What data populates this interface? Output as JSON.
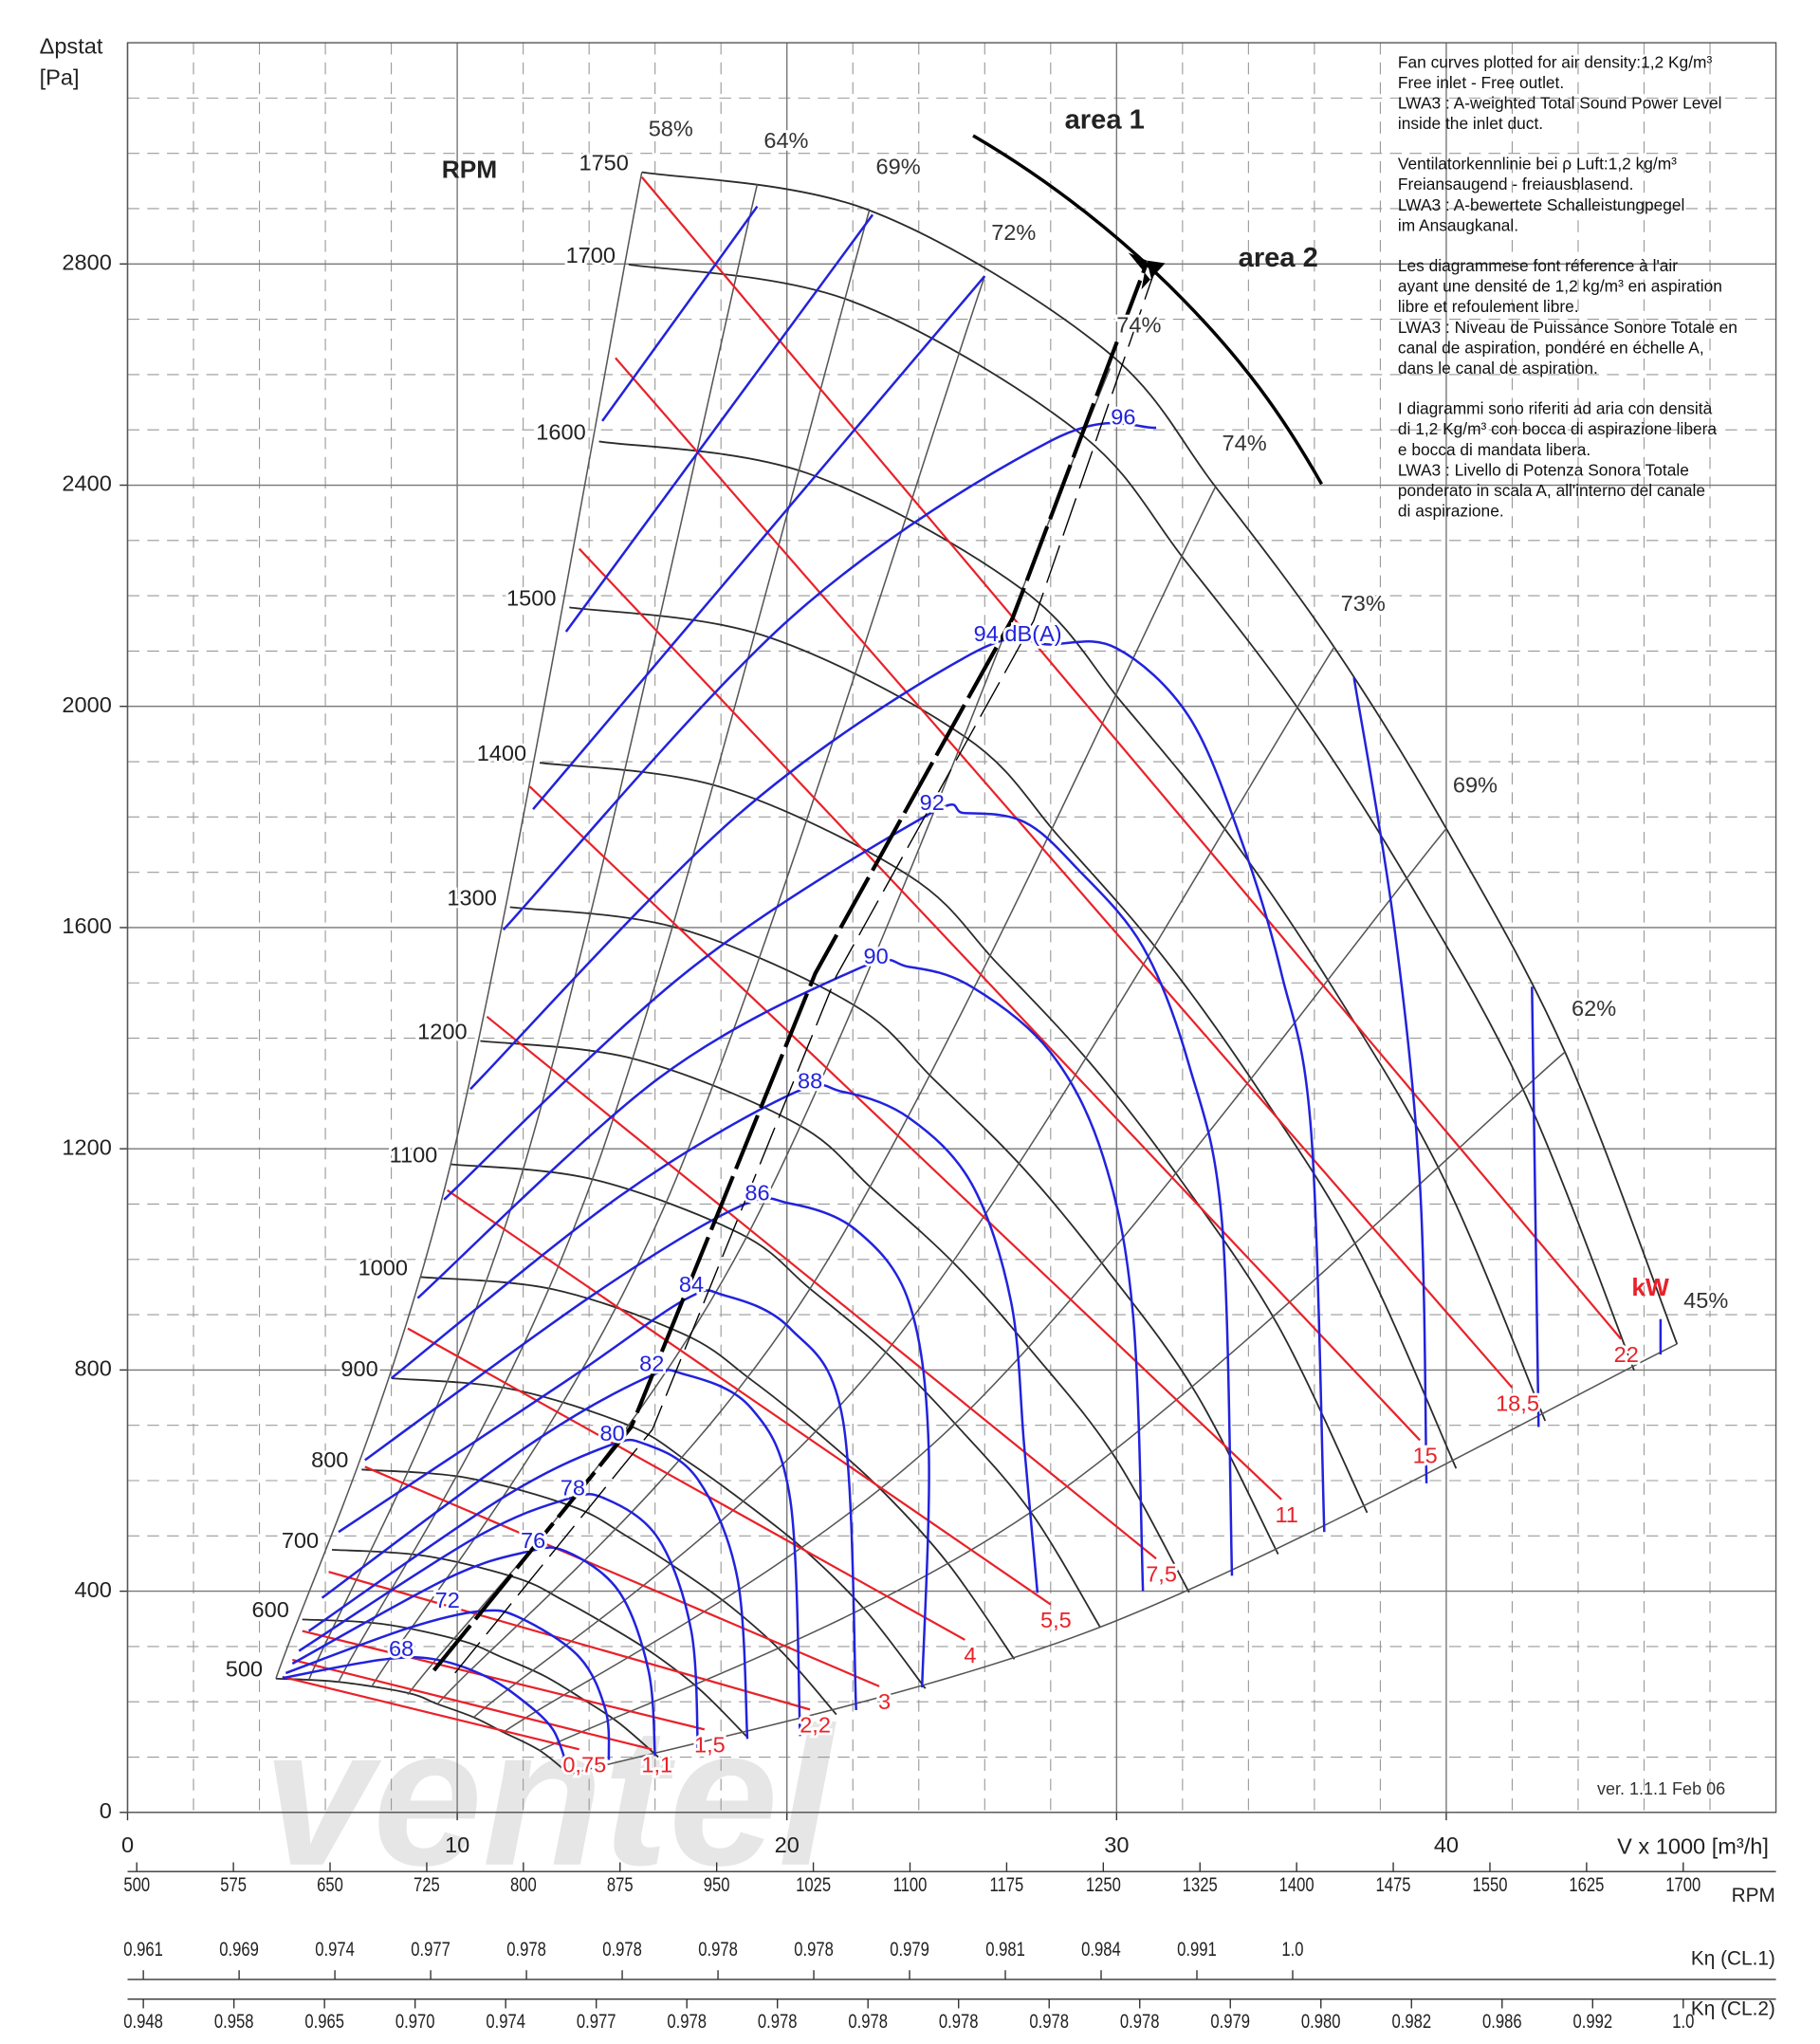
{
  "chart_data": {
    "type": "line",
    "ylabel": [
      "Δpstat",
      "[Pa]"
    ],
    "xlabel": "V x 1000 [m³/h]",
    "xlim": [
      0,
      50
    ],
    "ylim": [
      0,
      3200
    ],
    "xticks": [
      0,
      10,
      20,
      30,
      40
    ],
    "yticks": [
      0,
      400,
      800,
      1200,
      1600,
      2000,
      2400,
      2800
    ],
    "xminor": [
      2,
      4,
      6,
      8,
      12,
      14,
      16,
      18,
      22,
      24,
      26,
      28,
      32,
      34,
      36,
      38,
      42,
      44,
      46,
      48
    ],
    "yminor": [
      100,
      200,
      300,
      500,
      600,
      700,
      900,
      1000,
      1100,
      1300,
      1400,
      1500,
      1700,
      1800,
      1900,
      2100,
      2200,
      2300,
      2500,
      2600,
      2700,
      2900,
      3000,
      3100
    ],
    "grid": true,
    "rpm_label": "RPM",
    "area_labels": [
      "area 1",
      "area 2"
    ],
    "version": "ver. 1.1.1 Feb 06",
    "watermark": "ventel",
    "rpm_curves": {
      "color": "#2b2b2b",
      "series": [
        {
          "name": "1750",
          "x": [
            15.6,
            22.5,
            29.6,
            33,
            36.6,
            40,
            43.6,
            47
          ],
          "values": [
            2966,
            2897,
            2647,
            2397,
            2107,
            1779,
            1375,
            847
          ]
        },
        {
          "name": "1700",
          "x": [
            15.2,
            21.9,
            28.8,
            32.1,
            35.6,
            38.9,
            42.4,
            45.7
          ],
          "values": [
            2799,
            2734,
            2498,
            2262,
            1988,
            1679,
            1298,
            799
          ]
        },
        {
          "name": "1600",
          "x": [
            14.3,
            20.6,
            27.1,
            30.2,
            33.5,
            36.6,
            39.9,
            43.0
          ],
          "values": [
            2479,
            2422,
            2213,
            2004,
            1761,
            1487,
            1149,
            708
          ]
        },
        {
          "name": "1500",
          "x": [
            13.4,
            19.3,
            25.4,
            28.3,
            31.4,
            34.3,
            37.4,
            40.3
          ],
          "values": [
            2179,
            2128,
            1945,
            1761,
            1548,
            1307,
            1010,
            622
          ]
        },
        {
          "name": "1400",
          "x": [
            12.5,
            18,
            23.7,
            26.4,
            29.3,
            32,
            34.9,
            37.6
          ],
          "values": [
            1898,
            1854,
            1694,
            1534,
            1348,
            1139,
            880,
            542
          ]
        },
        {
          "name": "1300",
          "x": [
            11.6,
            16.7,
            22.0,
            24.5,
            27.2,
            29.7,
            32.4,
            34.9
          ],
          "values": [
            1637,
            1599,
            1461,
            1323,
            1163,
            982,
            759,
            467
          ]
        },
        {
          "name": "1200",
          "x": [
            10.7,
            15.4,
            20.3,
            22.6,
            25.1,
            27.4,
            29.9,
            32.2
          ],
          "values": [
            1395,
            1362,
            1245,
            1127,
            991,
            836,
            647,
            398
          ]
        },
        {
          "name": "1100",
          "x": [
            9.8,
            14.1,
            18.6,
            20.7,
            23.0,
            25.1,
            27.4,
            29.5
          ],
          "values": [
            1172,
            1145,
            1046,
            947,
            832,
            703,
            543,
            335
          ]
        },
        {
          "name": "1000",
          "x": [
            8.9,
            12.9,
            16.9,
            18.9,
            20.9,
            22.9,
            24.9,
            26.9
          ],
          "values": [
            968,
            946,
            864,
            783,
            688,
            581,
            449,
            277
          ]
        },
        {
          "name": "900",
          "x": [
            8.0,
            11.6,
            15.2,
            17.0,
            18.8,
            20.6,
            22.4,
            24.2
          ],
          "values": [
            785,
            766,
            700,
            634,
            557,
            471,
            364,
            224
          ]
        },
        {
          "name": "800",
          "x": [
            7.1,
            10.3,
            13.5,
            15.1,
            16.7,
            18.3,
            19.9,
            21.5
          ],
          "values": [
            620,
            605,
            553,
            501,
            440,
            372,
            287,
            177
          ]
        },
        {
          "name": "700",
          "x": [
            6.2,
            9,
            11.8,
            13.2,
            14.6,
            16,
            17.4,
            18.8
          ],
          "values": [
            475,
            464,
            424,
            384,
            337,
            285,
            220,
            136
          ]
        },
        {
          "name": "600",
          "x": [
            5.3,
            7.7,
            10.1,
            11.3,
            12.6,
            13.7,
            14.9,
            16.1
          ],
          "values": [
            349,
            341,
            311,
            282,
            248,
            209,
            162,
            100
          ]
        },
        {
          "name": "500",
          "x": [
            4.5,
            6.4,
            8.5,
            9.4,
            10.5,
            11.4,
            12.5,
            13.4
          ],
          "values": [
            242,
            236,
            216,
            196,
            172,
            145,
            112,
            69
          ]
        }
      ]
    },
    "efficiency_lines": {
      "color": "#555555",
      "series": [
        {
          "name": "58%",
          "x": [
            4.5,
            9.8,
            15.6
          ],
          "values": [
            242,
            1172,
            2966
          ]
        },
        {
          "name": "64%",
          "x": [
            5.5,
            12.0,
            19.1
          ],
          "values": [
            240,
            1163,
            2944
          ]
        },
        {
          "name": "69%",
          "x": [
            6.4,
            14.1,
            22.5
          ],
          "values": [
            236,
            1145,
            2897
          ]
        },
        {
          "name": "72%",
          "x": [
            7.4,
            16.3,
            26
          ],
          "values": [
            227,
            1098,
            2778
          ]
        },
        {
          "name": "74%",
          "x": [
            8.5,
            18.7,
            29.8
          ],
          "values": [
            213,
            1032,
            2611
          ]
        },
        {
          "name": "74%",
          "x": [
            9.4,
            20.7,
            33
          ],
          "values": [
            196,
            947,
            2397
          ]
        },
        {
          "name": "73%",
          "x": [
            10.5,
            23.0,
            36.6
          ],
          "values": [
            172,
            832,
            2107
          ]
        },
        {
          "name": "69%",
          "x": [
            11.4,
            25.1,
            40
          ],
          "values": [
            145,
            703,
            1779
          ]
        },
        {
          "name": "62%",
          "x": [
            12.5,
            27.4,
            43.6
          ],
          "values": [
            112,
            543,
            1375
          ]
        },
        {
          "name": "45%",
          "x": [
            13.4,
            29.5,
            47
          ],
          "values": [
            69,
            335,
            847
          ]
        }
      ]
    },
    "power_lines": {
      "color": "#e8222a",
      "label": "kW",
      "series": [
        {
          "name": "22",
          "x": [
            15.6,
            45.3
          ],
          "values": [
            2957,
            856
          ]
        },
        {
          "name": "18,5",
          "x": [
            14.8,
            42.0
          ],
          "values": [
            2630,
            768
          ]
        },
        {
          "name": "15",
          "x": [
            13.7,
            39.2
          ],
          "values": [
            2285,
            673
          ]
        },
        {
          "name": "11",
          "x": [
            12.2,
            35.0
          ],
          "values": [
            1855,
            566
          ]
        },
        {
          "name": "7,5",
          "x": [
            10.9,
            31.2
          ],
          "values": [
            1439,
            459
          ]
        },
        {
          "name": "5,5",
          "x": [
            9.7,
            28.0
          ],
          "values": [
            1125,
            376
          ]
        },
        {
          "name": "4",
          "x": [
            8.5,
            25.4
          ],
          "values": [
            875,
            312
          ]
        },
        {
          "name": "3",
          "x": [
            7.2,
            22.8
          ],
          "values": [
            625,
            228
          ]
        },
        {
          "name": "2,2",
          "x": [
            6.1,
            20.7
          ],
          "values": [
            435,
            186
          ]
        },
        {
          "name": "1,5",
          "x": [
            5.3,
            17.5
          ],
          "values": [
            328,
            150
          ]
        },
        {
          "name": "1,1",
          "x": [
            5.0,
            15.9
          ],
          "values": [
            276,
            114
          ]
        },
        {
          "name": "0,75",
          "x": [
            4.7,
            13.7
          ],
          "values": [
            245,
            114
          ]
        }
      ]
    },
    "sound_curves": {
      "color": "#2222dd",
      "series": [
        {
          "x": [
            14.4,
            19.1
          ],
          "values": [
            2516,
            2904
          ]
        },
        {
          "x": [
            13.3,
            22.6
          ],
          "values": [
            2135,
            2889
          ]
        },
        {
          "x": [
            12.3,
            26.0,
            null,
            42.6,
            42.8
          ],
          "values": [
            1814,
            2778,
            null,
            1493,
            697
          ]
        },
        {
          "x": [
            46.5,
            46.5
          ],
          "values": [
            892,
            828
          ]
        },
        {
          "name": "96",
          "x": [
            11.4,
            20.1,
            28.0,
            31.2,
            null,
            37.2,
            38.4,
            39.2,
            39.4
          ],
          "values": [
            1596,
            2159,
            2480,
            2504,
            null,
            2052,
            1612,
            1137,
            595
          ]
        },
        {
          "name": "94 dB(A)",
          "x": [
            10.4,
            18.5,
            25.6,
            28.0,
            30.0,
            32.2,
            33.8,
            35.0,
            35.9,
            36.3
          ],
          "values": [
            1308,
            1803,
            2095,
            2112,
            2105,
            1981,
            1755,
            1517,
            1232,
            507
          ]
        },
        {
          "name": "92",
          "x": [
            9.6,
            16.9,
            24.1,
            25.4,
            27.2,
            28.8,
            30.8,
            32.2,
            33.2,
            33.5
          ],
          "values": [
            1108,
            1517,
            1798,
            1807,
            1791,
            1707,
            1565,
            1351,
            1065,
            428
          ]
        },
        {
          "name": "90",
          "x": [
            8.8,
            16.1,
            22.1,
            23.7,
            25.6,
            28.0,
            29.6,
            30.5,
            30.8
          ],
          "values": [
            930,
            1327,
            1524,
            1529,
            1493,
            1374,
            1184,
            899,
            400
          ]
        },
        {
          "name": "88",
          "x": [
            8.0,
            14.9,
            20.1,
            21.7,
            23.7,
            25.6,
            26.8,
            27.2,
            27.6
          ],
          "values": [
            785,
            1113,
            1298,
            1303,
            1256,
            1137,
            923,
            661,
            397
          ]
        },
        {
          "name": "86",
          "x": [
            7.2,
            14.1,
            18.5,
            20.1,
            22.1,
            23.7,
            24.3,
            24.1
          ],
          "values": [
            637,
            935,
            1094,
            1101,
            1053,
            923,
            661,
            226
          ]
        },
        {
          "name": "84",
          "x": [
            6.4,
            13.3,
            16.9,
            18.1,
            20.1,
            21.7,
            22.1
          ],
          "values": [
            507,
            780,
            927,
            935,
            875,
            709,
            185
          ]
        },
        {
          "name": "82",
          "x": [
            5.9,
            12.1,
            15.7,
            16.9,
            18.9,
            20.1,
            20.4
          ],
          "values": [
            388,
            661,
            785,
            792,
            732,
            566,
            138
          ]
        },
        {
          "name": "80",
          "x": [
            5.5,
            11.3,
            14.5,
            15.7,
            17.3,
            18.5,
            18.8
          ],
          "values": [
            328,
            566,
            661,
            666,
            602,
            423,
            133
          ]
        },
        {
          "name": "78",
          "x": [
            5.2,
            10.5,
            13.3,
            14.5,
            16.1,
            17.1,
            17.3
          ],
          "values": [
            292,
            495,
            566,
            567,
            495,
            328,
            109
          ]
        },
        {
          "name": "76",
          "x": [
            5.0,
            9.7,
            12.1,
            13.3,
            14.9,
            15.8,
            16.0
          ],
          "values": [
            269,
            423,
            471,
            472,
            400,
            257,
            102
          ]
        },
        {
          "name": "72",
          "x": [
            4.8,
            8.5,
            10.7,
            11.9,
            13.7,
            14.5,
            14.6
          ],
          "values": [
            252,
            333,
            364,
            352,
            281,
            185,
            95
          ]
        },
        {
          "name": "68",
          "x": [
            4.7,
            7.7,
            9.3,
            10.9,
            12.1,
            12.9,
            13.3
          ],
          "values": [
            243,
            276,
            277,
            245,
            197,
            150,
            90
          ]
        }
      ]
    },
    "rpm_scale": {
      "label": "RPM",
      "values": [
        "500",
        "575",
        "650",
        "725",
        "800",
        "875",
        "950",
        "1025",
        "1100",
        "1175",
        "1250",
        "1325",
        "1400",
        "1475",
        "1550",
        "1625",
        "1700"
      ]
    },
    "k_cl1_scale": {
      "label": "Kη (CL.1)",
      "values": [
        "0.961",
        "0.969",
        "0.974",
        "0.977",
        "0.978",
        "0.978",
        "0.978",
        "0.978",
        "0.979",
        "0.981",
        "0.984",
        "0.991",
        "1.0"
      ]
    },
    "k_cl2_scale": {
      "label": "Kη (CL.2)",
      "values": [
        "0.948",
        "0.958",
        "0.965",
        "0.970",
        "0.974",
        "0.977",
        "0.978",
        "0.978",
        "0.978",
        "0.978",
        "0.978",
        "0.978",
        "0.979",
        "0.980",
        "0.982",
        "0.986",
        "0.992",
        "1.0"
      ]
    },
    "notes": [
      [
        "Fan curves plotted for air density:1,2 Kg/m³",
        "Free inlet - Free outlet.",
        "LWA3 : A-weighted Total Sound Power Level",
        "inside the inlet duct."
      ],
      [
        "Ventilatorkennlinie bei ρ Luft:1,2 kg/m³",
        "Freiansaugend - freiausblasend.",
        "LWA3 : A-bewertete Schalleistungpegel",
        "im Ansaugkanal."
      ],
      [
        "Les diagrammese font réference à l'air",
        "ayant une densité de 1,2 kg/m³ en aspiration",
        "libre et refoulement libre.",
        "LWA3 : Niveau de Puissance Sonore Totale en",
        "canal de aspiration, pondéré en échelle A,",
        "dans le canal de aspiration."
      ],
      [
        "I diagrammi sono riferiti ad aria con densità",
        "di 1,2 Kg/m³ con bocca di aspirazione libera",
        "e bocca di mandata libera.",
        "LWA3 : Livello di Potenza Sonora Totale",
        "ponderato in scala A, all'interno del canale",
        "di aspirazione."
      ]
    ]
  }
}
